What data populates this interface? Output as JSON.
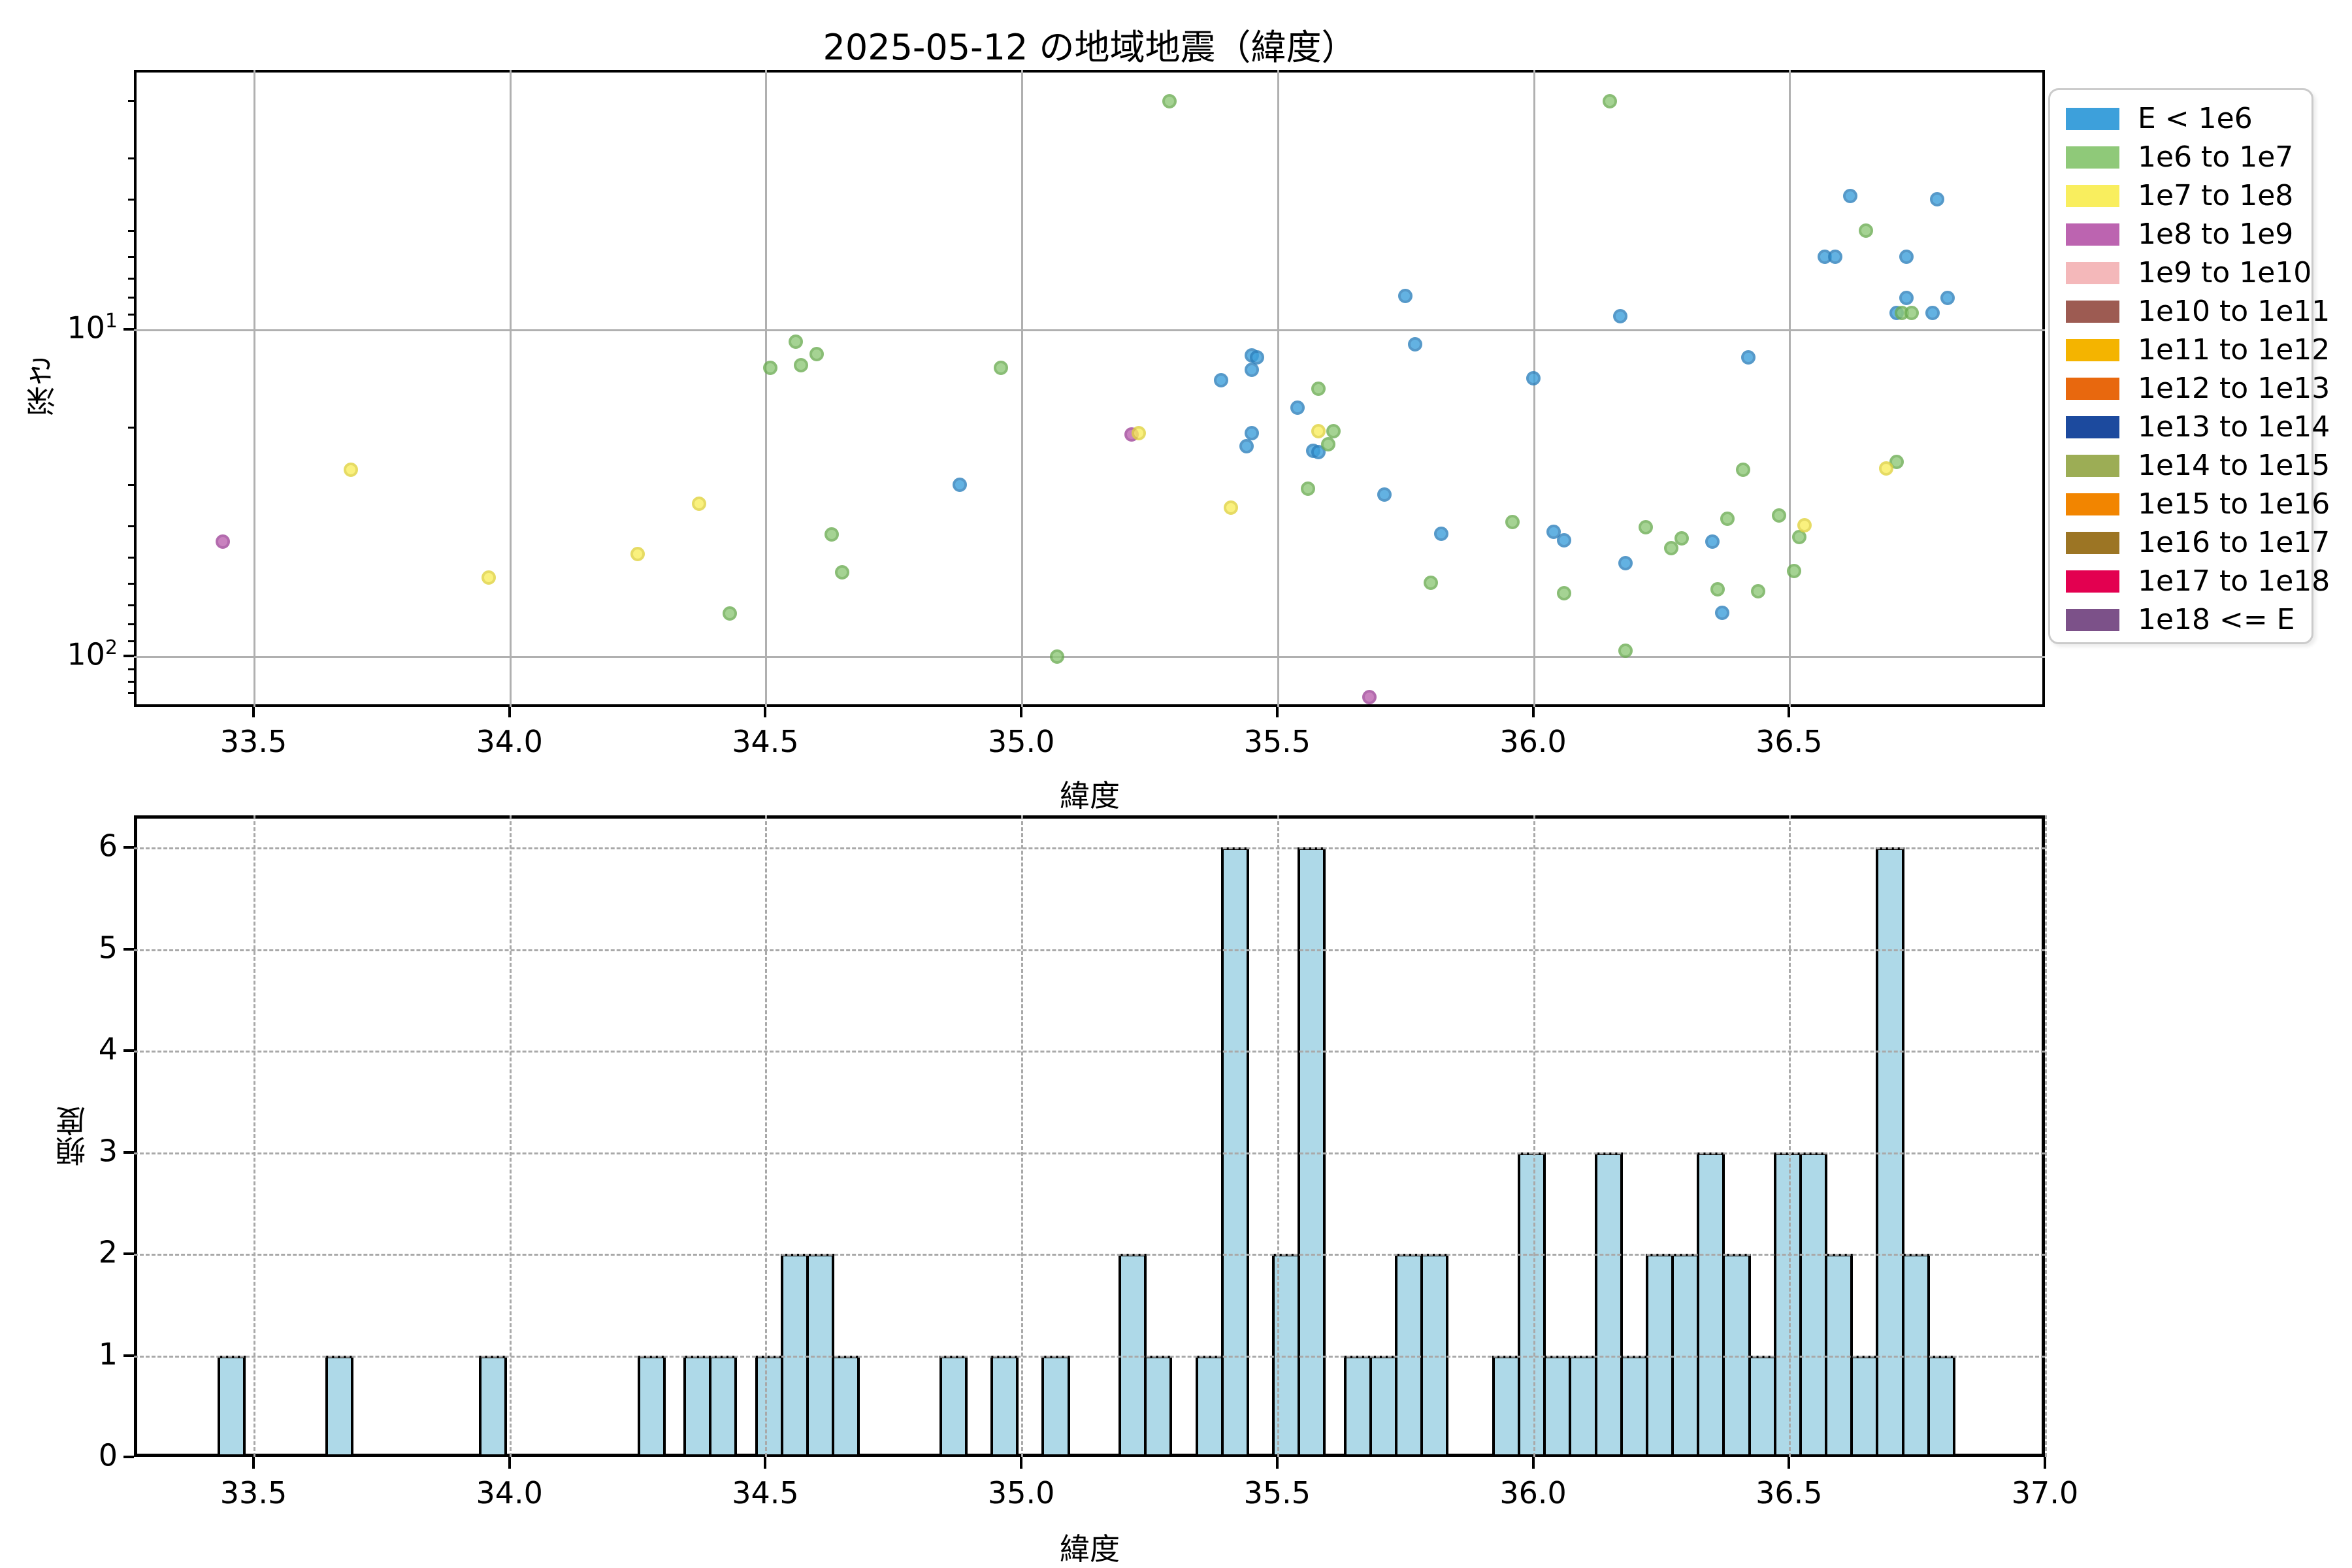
{
  "title": "2025-05-12 の地域地震（緯度）",
  "colors": {
    "hist_fill": "#AED9E8",
    "grid_solid": "#B0B0B0",
    "grid_dashed": "#A9A9A9",
    "series_edges": {
      "E < 1e6": "#2C80BC",
      "1e6 to 1e7": "#6CAD53",
      "1e7 to 1e8": "#E0D33E",
      "1e8 to 1e9": "#A1479A"
    }
  },
  "legend": {
    "items": [
      {
        "label": "E < 1e6",
        "color": "#3DA0DB"
      },
      {
        "label": "1e6 to 1e7",
        "color": "#8FC979"
      },
      {
        "label": "1e7 to 1e8",
        "color": "#F9EE5E"
      },
      {
        "label": "1e8 to 1e9",
        "color": "#BC64B0"
      },
      {
        "label": "1e9 to 1e10",
        "color": "#F4B8BA"
      },
      {
        "label": "1e10 to 1e11",
        "color": "#9D5B52"
      },
      {
        "label": "1e11 to 1e12",
        "color": "#F4B400"
      },
      {
        "label": "1e12 to 1e13",
        "color": "#E8680E"
      },
      {
        "label": "1e13 to 1e14",
        "color": "#1C4A9E"
      },
      {
        "label": "1e14 to 1e15",
        "color": "#9CAD55"
      },
      {
        "label": "1e15 to 1e16",
        "color": "#F28500"
      },
      {
        "label": "1e16 to 1e17",
        "color": "#9C7524"
      },
      {
        "label": "1e17 to 1e18",
        "color": "#E30050"
      },
      {
        "label": "1e18 <= E",
        "color": "#7C5189"
      }
    ]
  },
  "scatter": {
    "xlabel": "緯度",
    "ylabel": "深さ",
    "xticks": [
      33.5,
      34.0,
      34.5,
      35.0,
      35.5,
      36.0,
      36.5
    ],
    "yticks": [
      {
        "v": 10,
        "label": "10^1"
      },
      {
        "v": 100,
        "label": "10^2"
      }
    ]
  },
  "hist": {
    "xlabel": "緯度",
    "ylabel": "頻度",
    "xticks": [
      33.5,
      34.0,
      34.5,
      35.0,
      35.5,
      36.0,
      36.5,
      37.0
    ],
    "yticks": [
      0,
      1,
      2,
      3,
      4,
      5,
      6
    ]
  },
  "chart_data": [
    {
      "type": "scatter",
      "title": "2025-05-12 の地域地震（緯度）",
      "xlabel": "緯度",
      "ylabel": "深さ",
      "xlim": [
        33.27,
        37.0
      ],
      "ylim_depth": [
        1.6,
        143
      ],
      "yscale": "log",
      "yaxis_inverted": true,
      "grid": true,
      "legend_position": "outside-right",
      "series": [
        {
          "name": "E < 1e6",
          "color": "#3DA0DB",
          "points": [
            [
              34.88,
              29.9
            ],
            [
              35.39,
              14.3
            ],
            [
              35.45,
              12.0
            ],
            [
              35.46,
              12.2
            ],
            [
              35.45,
              13.3
            ],
            [
              35.45,
              20.8
            ],
            [
              35.44,
              22.8
            ],
            [
              35.54,
              17.4
            ],
            [
              35.57,
              23.6
            ],
            [
              35.58,
              23.8
            ],
            [
              35.71,
              32.1
            ],
            [
              35.75,
              7.9
            ],
            [
              35.77,
              11.1
            ],
            [
              35.82,
              42.3
            ],
            [
              36.0,
              14.1
            ],
            [
              36.04,
              41.7
            ],
            [
              36.06,
              44.3
            ],
            [
              36.17,
              9.1
            ],
            [
              36.18,
              52.1
            ],
            [
              36.35,
              44.7
            ],
            [
              36.37,
              73.9
            ],
            [
              36.42,
              12.2
            ],
            [
              36.57,
              6.0
            ],
            [
              36.59,
              6.0
            ],
            [
              36.62,
              3.9
            ],
            [
              36.71,
              8.9
            ],
            [
              36.73,
              6.0
            ],
            [
              36.73,
              8.0
            ],
            [
              36.78,
              8.9
            ],
            [
              36.79,
              4.0
            ],
            [
              36.81,
              8.0
            ]
          ]
        },
        {
          "name": "1e6 to 1e7",
          "color": "#8FC979",
          "points": [
            [
              34.43,
              74.1
            ],
            [
              34.51,
              13.1
            ],
            [
              34.56,
              10.9
            ],
            [
              34.57,
              12.9
            ],
            [
              34.6,
              11.9
            ],
            [
              34.63,
              42.5
            ],
            [
              34.65,
              55.5
            ],
            [
              34.96,
              13.1
            ],
            [
              35.07,
              100.6
            ],
            [
              35.29,
              2.0
            ],
            [
              35.56,
              30.8
            ],
            [
              35.58,
              15.2
            ],
            [
              35.61,
              20.5
            ],
            [
              35.6,
              22.5
            ],
            [
              35.8,
              59.8
            ],
            [
              35.96,
              38.9
            ],
            [
              36.06,
              64.2
            ],
            [
              36.15,
              2.0
            ],
            [
              36.18,
              96.3
            ],
            [
              36.22,
              40.3
            ],
            [
              36.27,
              46.8
            ],
            [
              36.29,
              43.7
            ],
            [
              36.36,
              62.5
            ],
            [
              36.38,
              38.0
            ],
            [
              36.41,
              26.9
            ],
            [
              36.44,
              63.3
            ],
            [
              36.48,
              37.2
            ],
            [
              36.51,
              55.0
            ],
            [
              36.52,
              43.3
            ],
            [
              36.65,
              5.0
            ],
            [
              36.71,
              25.5
            ],
            [
              36.72,
              8.9
            ],
            [
              36.74,
              8.9
            ]
          ]
        },
        {
          "name": "1e8 to 1e9",
          "color": "#BC64B0",
          "points": [
            [
              33.44,
              44.7
            ],
            [
              35.215,
              21.0
            ],
            [
              35.68,
              133.4
            ]
          ]
        },
        {
          "name": "1e7 to 1e8",
          "color": "#F9EE5E",
          "points": [
            [
              33.69,
              26.9
            ],
            [
              33.96,
              57.5
            ],
            [
              34.25,
              48.8
            ],
            [
              34.37,
              34.2
            ],
            [
              35.23,
              20.8
            ],
            [
              35.41,
              35.2
            ],
            [
              35.58,
              20.5
            ],
            [
              36.53,
              39.8
            ],
            [
              36.69,
              26.7
            ]
          ]
        }
      ]
    },
    {
      "type": "bar",
      "xlabel": "緯度",
      "ylabel": "頻度",
      "xlim": [
        33.27,
        37.0
      ],
      "ylim": [
        0,
        6.3
      ],
      "grid": "dashed",
      "bin_width": 0.05,
      "bars": [
        [
          33.43,
          1
        ],
        [
          33.64,
          1
        ],
        [
          33.94,
          1
        ],
        [
          34.25,
          1
        ],
        [
          34.34,
          1
        ],
        [
          34.39,
          1
        ],
        [
          34.48,
          1
        ],
        [
          34.53,
          2
        ],
        [
          34.58,
          2
        ],
        [
          34.63,
          1
        ],
        [
          34.84,
          1
        ],
        [
          34.94,
          1
        ],
        [
          35.04,
          1
        ],
        [
          35.19,
          2
        ],
        [
          35.24,
          1
        ],
        [
          35.34,
          1
        ],
        [
          35.39,
          6
        ],
        [
          35.49,
          2
        ],
        [
          35.54,
          6
        ],
        [
          35.63,
          1
        ],
        [
          35.68,
          1
        ],
        [
          35.73,
          2
        ],
        [
          35.78,
          2
        ],
        [
          35.92,
          1
        ],
        [
          35.97,
          3
        ],
        [
          36.02,
          1
        ],
        [
          36.07,
          1
        ],
        [
          36.12,
          3
        ],
        [
          36.17,
          1
        ],
        [
          36.22,
          2
        ],
        [
          36.27,
          2
        ],
        [
          36.32,
          3
        ],
        [
          36.37,
          2
        ],
        [
          36.42,
          1
        ],
        [
          36.47,
          3
        ],
        [
          36.52,
          3
        ],
        [
          36.57,
          2
        ],
        [
          36.62,
          1
        ],
        [
          36.67,
          6
        ],
        [
          36.72,
          2
        ],
        [
          36.77,
          1
        ]
      ]
    }
  ]
}
